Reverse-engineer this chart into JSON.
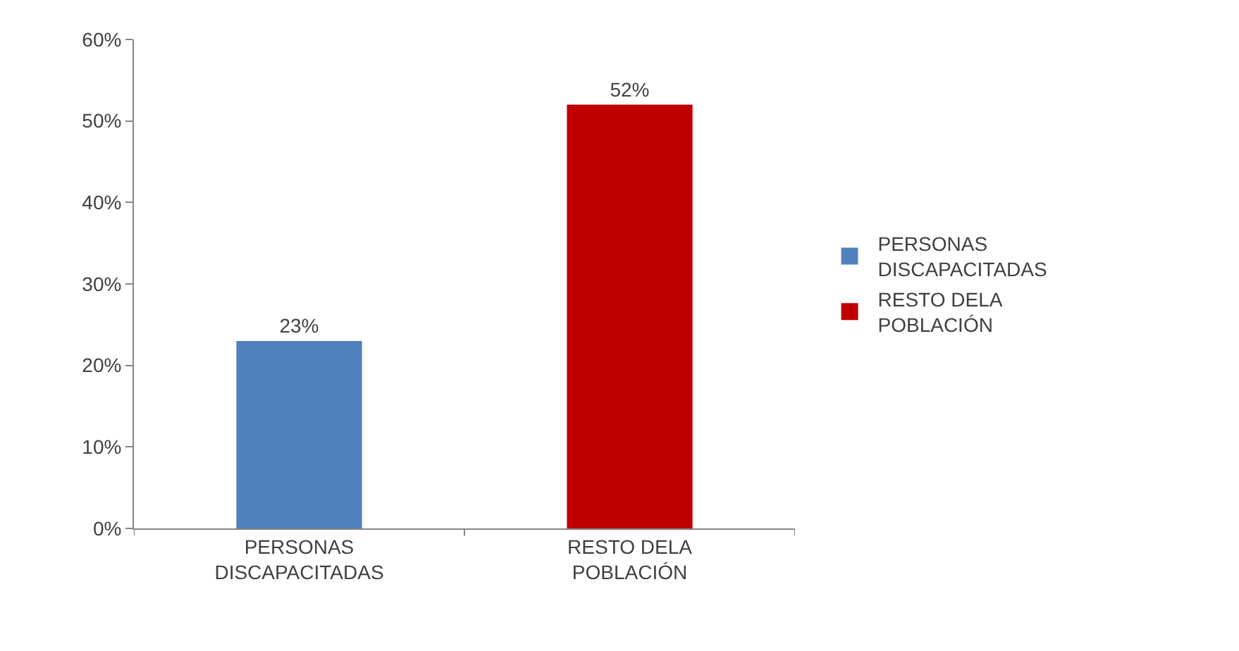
{
  "chart_data": {
    "type": "bar",
    "categories": [
      "PERSONAS DISCAPACITADAS",
      "RESTO DELA POBLACIÓN"
    ],
    "series": [
      {
        "name": "PERSONAS DISCAPACITADAS",
        "color": "#4f81bd",
        "values": [
          23,
          null
        ],
        "value_labels": [
          "23%",
          null
        ]
      },
      {
        "name": "RESTO DELA POBLACIÓN",
        "color": "#c00000",
        "values": [
          null,
          52
        ],
        "value_labels": [
          null,
          "52%"
        ]
      }
    ],
    "ylim": [
      0,
      60
    ],
    "yticks": [
      {
        "value": 0,
        "label": "0%"
      },
      {
        "value": 10,
        "label": "10%"
      },
      {
        "value": 20,
        "label": "20%"
      },
      {
        "value": 30,
        "label": "30%"
      },
      {
        "value": 40,
        "label": "40%"
      },
      {
        "value": 50,
        "label": "50%"
      },
      {
        "value": 60,
        "label": "60%"
      }
    ],
    "grid": false,
    "legend": "right"
  }
}
